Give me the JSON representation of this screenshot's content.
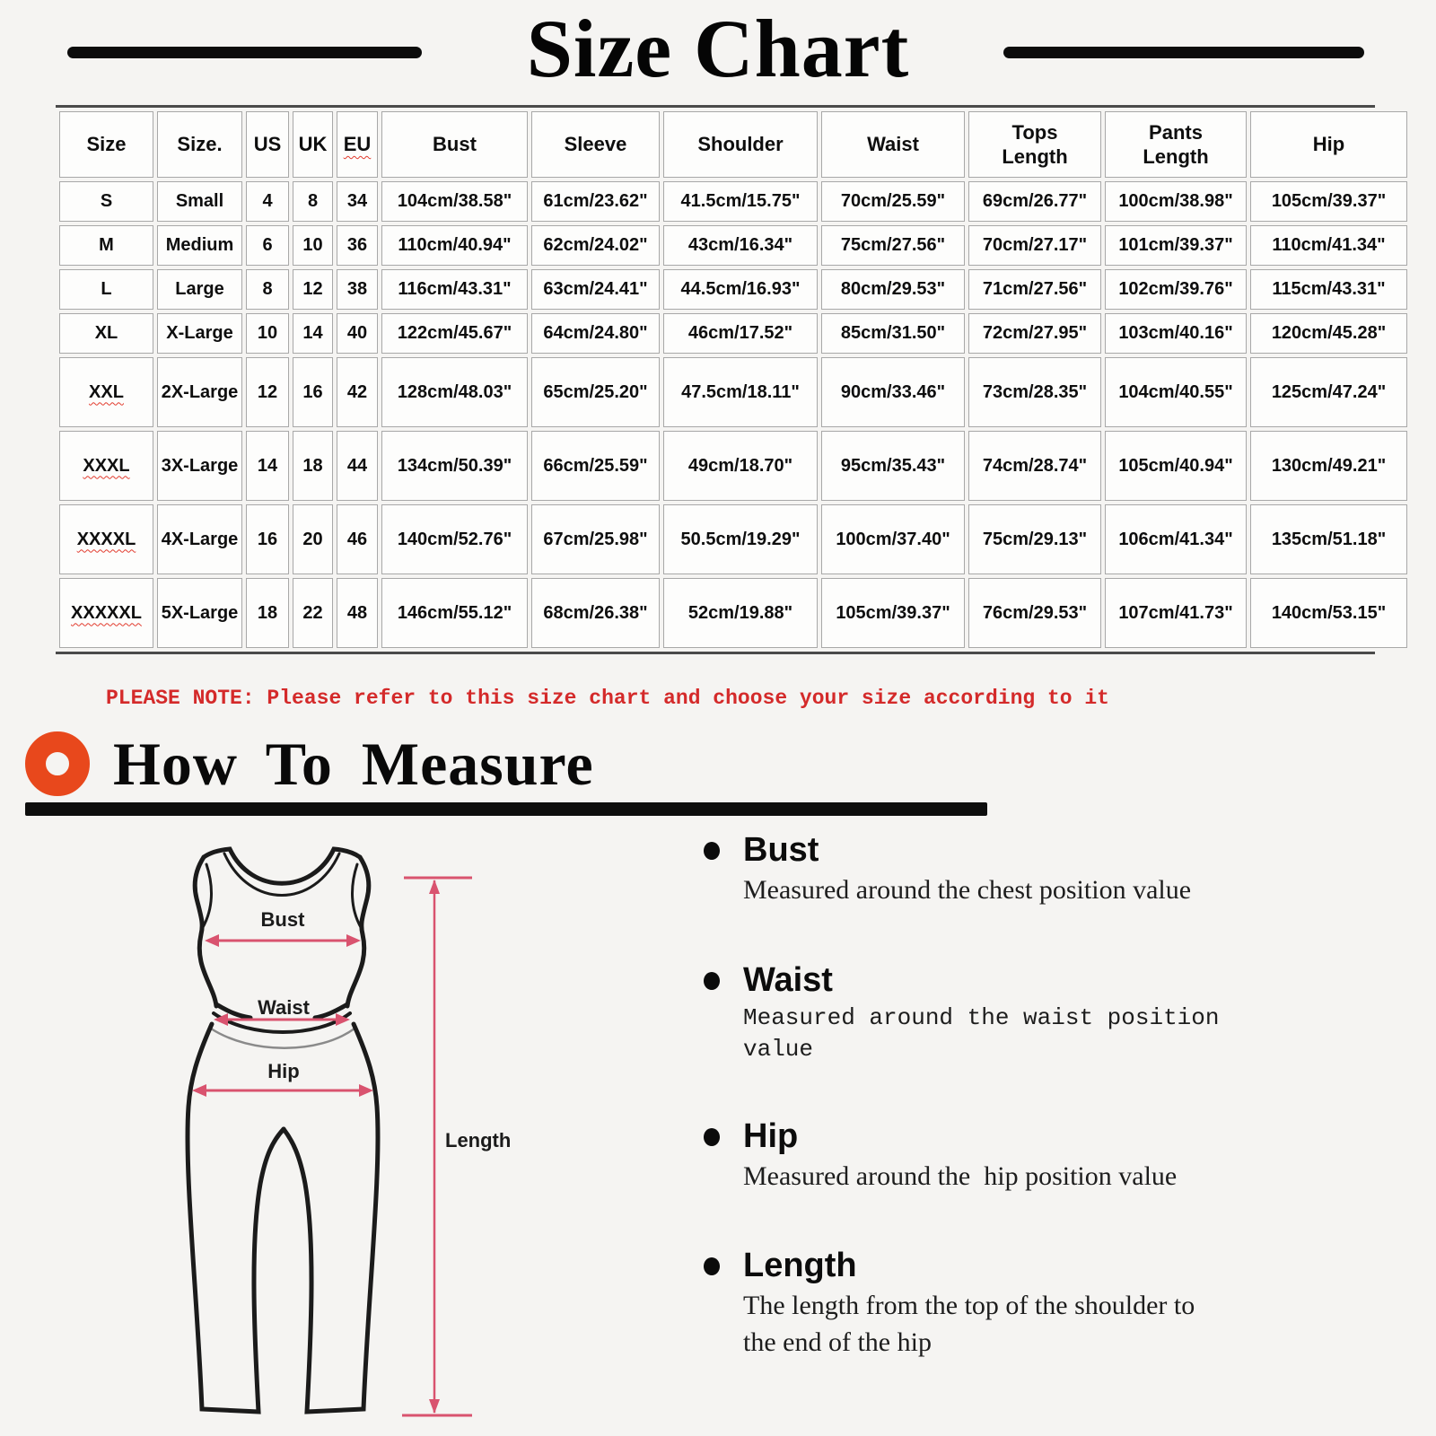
{
  "title": {
    "text": "Size Chart"
  },
  "note": {
    "text": "PLEASE NOTE: Please refer to this size chart and choose your size according to it"
  },
  "size_table": {
    "headers": [
      {
        "label": "Size"
      },
      {
        "label": "Size."
      },
      {
        "label": "US"
      },
      {
        "label": "UK"
      },
      {
        "label": "EU",
        "underline": true
      },
      {
        "label": "Bust"
      },
      {
        "label": "Sleeve"
      },
      {
        "label": "Shoulder"
      },
      {
        "label": "Waist"
      },
      {
        "label": "Tops Length",
        "two_line": true
      },
      {
        "label": "Pants Length",
        "two_line": true
      },
      {
        "label": "Hip"
      }
    ],
    "rows": [
      {
        "size": "S",
        "size_name": "Small",
        "us": "4",
        "uk": "8",
        "eu": "34",
        "bust": "104cm/38.58\"",
        "sleeve": "61cm/23.62\"",
        "shoulder": "41.5cm/15.75\"",
        "waist": "70cm/25.59\"",
        "tops_length": "69cm/26.77\"",
        "pants_length": "100cm/38.98\"",
        "hip": "105cm/39.37\"",
        "underline": false
      },
      {
        "size": "M",
        "size_name": "Medium",
        "us": "6",
        "uk": "10",
        "eu": "36",
        "bust": "110cm/40.94\"",
        "sleeve": "62cm/24.02\"",
        "shoulder": "43cm/16.34\"",
        "waist": "75cm/27.56\"",
        "tops_length": "70cm/27.17\"",
        "pants_length": "101cm/39.37\"",
        "hip": "110cm/41.34\"",
        "underline": false
      },
      {
        "size": "L",
        "size_name": "Large",
        "us": "8",
        "uk": "12",
        "eu": "38",
        "bust": "116cm/43.31\"",
        "sleeve": "63cm/24.41\"",
        "shoulder": "44.5cm/16.93\"",
        "waist": "80cm/29.53\"",
        "tops_length": "71cm/27.56\"",
        "pants_length": "102cm/39.76\"",
        "hip": "115cm/43.31\"",
        "underline": false
      },
      {
        "size": "XL",
        "size_name": "X-Large",
        "us": "10",
        "uk": "14",
        "eu": "40",
        "bust": "122cm/45.67\"",
        "sleeve": "64cm/24.80\"",
        "shoulder": "46cm/17.52\"",
        "waist": "85cm/31.50\"",
        "tops_length": "72cm/27.95\"",
        "pants_length": "103cm/40.16\"",
        "hip": "120cm/45.28\"",
        "underline": false
      },
      {
        "size": "XXL",
        "size_name": "2X-Large",
        "us": "12",
        "uk": "16",
        "eu": "42",
        "bust": "128cm/48.03\"",
        "sleeve": "65cm/25.20\"",
        "shoulder": "47.5cm/18.11\"",
        "waist": "90cm/33.46\"",
        "tops_length": "73cm/28.35\"",
        "pants_length": "104cm/40.55\"",
        "hip": "125cm/47.24\"",
        "underline": true
      },
      {
        "size": "XXXL",
        "size_name": "3X-Large",
        "us": "14",
        "uk": "18",
        "eu": "44",
        "bust": "134cm/50.39\"",
        "sleeve": "66cm/25.59\"",
        "shoulder": "49cm/18.70\"",
        "waist": "95cm/35.43\"",
        "tops_length": "74cm/28.74\"",
        "pants_length": "105cm/40.94\"",
        "hip": "130cm/49.21\"",
        "underline": true
      },
      {
        "size": "XXXXL",
        "size_name": "4X-Large",
        "us": "16",
        "uk": "20",
        "eu": "46",
        "bust": "140cm/52.76\"",
        "sleeve": "67cm/25.98\"",
        "shoulder": "50.5cm/19.29\"",
        "waist": "100cm/37.40\"",
        "tops_length": "75cm/29.13\"",
        "pants_length": "106cm/41.34\"",
        "hip": "135cm/51.18\"",
        "underline": true
      },
      {
        "size": "XXXXXL",
        "size_name": "5X-Large",
        "us": "18",
        "uk": "22",
        "eu": "48",
        "bust": "146cm/55.12\"",
        "sleeve": "68cm/26.38\"",
        "shoulder": "52cm/19.88\"",
        "waist": "105cm/39.37\"",
        "tops_length": "76cm/29.53\"",
        "pants_length": "107cm/41.73\"",
        "hip": "140cm/53.15\"",
        "underline": true
      }
    ]
  },
  "how_to_measure": {
    "heading": "How To Measure",
    "items": [
      {
        "name": "Bust",
        "desc": "Measured around the chest position value",
        "desc_style": "serif"
      },
      {
        "name": "Waist",
        "desc": "Measured around the waist position value",
        "desc_style": "mono"
      },
      {
        "name": "Hip",
        "desc": "Measured around the  hip position value",
        "desc_style": "serif"
      },
      {
        "name": "Length",
        "desc": "The length from the top of the shoulder to\nthe end of the hip",
        "desc_style": "serif"
      }
    ],
    "diagram_labels": {
      "bust": "Bust",
      "waist": "Waist",
      "hip": "Hip",
      "length": "Length"
    }
  },
  "colors": {
    "accent_pink": "#d9536f",
    "icon_orange": "#e8481c",
    "note_red": "#d42a2a",
    "table_border": "#a8a8a8",
    "bar_black": "#0d0d0d"
  }
}
